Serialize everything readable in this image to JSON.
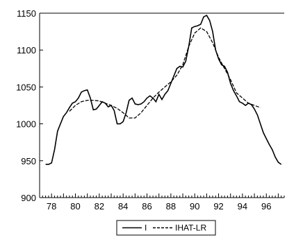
{
  "chart_data": {
    "type": "line",
    "title": "",
    "xlabel": "",
    "ylabel": "",
    "xlim": [
      77,
      97.5
    ],
    "ylim": [
      900,
      1150
    ],
    "x_ticks": [
      78,
      80,
      82,
      84,
      86,
      88,
      90,
      92,
      94,
      96
    ],
    "x_tick_labels": [
      "78",
      "80",
      "82",
      "84",
      "86",
      "88",
      "90",
      "92",
      "94",
      "96"
    ],
    "y_ticks": [
      900,
      950,
      1000,
      1050,
      1100,
      1150
    ],
    "y_tick_labels": [
      "900",
      "950",
      "1000",
      "1050",
      "1100",
      "1150"
    ],
    "grid": false,
    "legend_position": "bottom-center",
    "series": [
      {
        "name": "I",
        "style": "solid",
        "color": "#000000",
        "x": [
          77.5,
          77.75,
          78.0,
          78.25,
          78.5,
          78.75,
          79.0,
          79.25,
          79.5,
          79.75,
          80.0,
          80.25,
          80.5,
          80.75,
          81.0,
          81.25,
          81.5,
          81.75,
          82.0,
          82.25,
          82.5,
          82.75,
          83.0,
          83.25,
          83.5,
          83.75,
          84.0,
          84.25,
          84.5,
          84.75,
          85.0,
          85.25,
          85.5,
          85.75,
          86.0,
          86.25,
          86.5,
          86.75,
          87.0,
          87.25,
          87.5,
          87.75,
          88.0,
          88.25,
          88.5,
          88.75,
          89.0,
          89.25,
          89.5,
          89.75,
          90.0,
          90.25,
          90.5,
          90.75,
          91.0,
          91.25,
          91.5,
          91.75,
          92.0,
          92.25,
          92.5,
          92.75,
          93.0,
          93.25,
          93.5,
          93.75,
          94.0,
          94.25,
          94.5,
          94.75,
          95.0,
          95.25,
          95.5,
          95.75,
          96.0,
          96.25,
          96.5,
          96.75,
          97.0,
          97.25
        ],
        "y": [
          945,
          945,
          947,
          965,
          990,
          1000,
          1010,
          1015,
          1022,
          1028,
          1030,
          1035,
          1043,
          1045,
          1046,
          1035,
          1019,
          1020,
          1025,
          1030,
          1028,
          1023,
          1025,
          1018,
          1000,
          1000,
          1003,
          1015,
          1032,
          1035,
          1027,
          1026,
          1027,
          1030,
          1035,
          1038,
          1035,
          1030,
          1040,
          1033,
          1040,
          1045,
          1055,
          1065,
          1075,
          1078,
          1077,
          1085,
          1105,
          1130,
          1132,
          1133,
          1135,
          1145,
          1147,
          1140,
          1125,
          1100,
          1088,
          1080,
          1078,
          1070,
          1055,
          1045,
          1038,
          1030,
          1028,
          1025,
          1028,
          1026,
          1020,
          1012,
          1000,
          988,
          980,
          972,
          965,
          955,
          948,
          945
        ]
      },
      {
        "name": "IHAT-LR",
        "style": "dashed",
        "color": "#000000",
        "x": [
          79.5,
          80.0,
          80.5,
          81.0,
          81.5,
          82.0,
          82.5,
          83.0,
          83.5,
          84.0,
          84.5,
          85.0,
          85.5,
          86.0,
          86.5,
          87.0,
          87.5,
          88.0,
          88.5,
          89.0,
          89.5,
          90.0,
          90.5,
          91.0,
          91.5,
          92.0,
          92.5,
          93.0,
          93.5,
          94.0,
          94.5,
          95.0,
          95.5
        ],
        "y": [
          1017,
          1025,
          1030,
          1032,
          1032,
          1031,
          1028,
          1025,
          1021,
          1015,
          1008,
          1008,
          1015,
          1025,
          1035,
          1043,
          1050,
          1057,
          1066,
          1080,
          1105,
          1123,
          1130,
          1125,
          1110,
          1090,
          1075,
          1060,
          1042,
          1035,
          1028,
          1025,
          1022
        ]
      }
    ]
  }
}
